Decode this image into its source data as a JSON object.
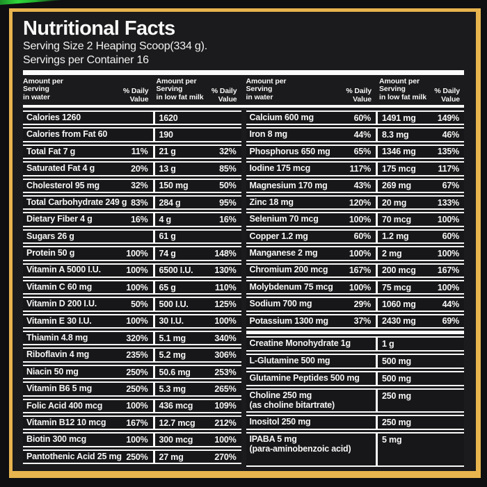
{
  "colors": {
    "frame_gold": "#e8b44e",
    "panel_bg": "#1b1b1d",
    "page_bg": "#0f0f12",
    "line_white": "#fbfbfb",
    "swoosh_green": "#2fd83b"
  },
  "header": {
    "title": "Nutritional Facts",
    "serving_size": "Serving Size 2 Heaping Scoop(334 g).",
    "servings_per_container": "Servings per Container 16"
  },
  "column_headers": {
    "water": "Amount per\nServing\nin water",
    "water_dv": "% Daily\nValue",
    "milk": "Amount per\nServing\nin low fat milk",
    "milk_dv": "% Daily\nValue"
  },
  "left_table": {
    "rows": [
      {
        "label": "Calories 1260",
        "water_dv": "",
        "milk": "1620",
        "milk_dv": ""
      },
      {
        "label": "Calories from Fat 60",
        "water_dv": "",
        "milk": "190",
        "milk_dv": ""
      },
      {
        "label": "Total Fat 7 g",
        "water_dv": "11%",
        "milk": "21 g",
        "milk_dv": "32%"
      },
      {
        "label": "Saturated Fat 4 g",
        "water_dv": "20%",
        "milk": "13 g",
        "milk_dv": "85%"
      },
      {
        "label": "Cholesterol 95 mg",
        "water_dv": "32%",
        "milk": "150 mg",
        "milk_dv": "50%"
      },
      {
        "label": "Total Carbohydrate 249 g",
        "water_dv": "83%",
        "milk": "284 g",
        "milk_dv": "95%"
      },
      {
        "label": "Dietary Fiber 4 g",
        "water_dv": "16%",
        "milk": "4 g",
        "milk_dv": "16%"
      },
      {
        "label": "Sugars 26 g",
        "water_dv": "",
        "milk": "61 g",
        "milk_dv": ""
      },
      {
        "label": "Protein 50 g",
        "water_dv": "100%",
        "milk": "74 g",
        "milk_dv": "148%"
      },
      {
        "label": "Vitamin A 5000 I.U.",
        "water_dv": "100%",
        "milk": "6500 I.U.",
        "milk_dv": "130%"
      },
      {
        "label": "Vitamin C 60 mg",
        "water_dv": "100%",
        "milk": "65 g",
        "milk_dv": "110%"
      },
      {
        "label": "Vitamin D 200 I.U.",
        "water_dv": "50%",
        "milk": "500 I.U.",
        "milk_dv": "125%"
      },
      {
        "label": "Vitamin E 30 I.U.",
        "water_dv": "100%",
        "milk": "30 I.U.",
        "milk_dv": "100%"
      },
      {
        "label": "Thiamin 4.8 mg",
        "water_dv": "320%",
        "milk": "5.1 mg",
        "milk_dv": "340%"
      },
      {
        "label": "Riboflavin 4 mg",
        "water_dv": "235%",
        "milk": "5.2 mg",
        "milk_dv": "306%"
      },
      {
        "label": "Niacin 50 mg",
        "water_dv": "250%",
        "milk": "50.6 mg",
        "milk_dv": "253%"
      },
      {
        "label": "Vitamin B6 5 mg",
        "water_dv": "250%",
        "milk": "5.3 mg",
        "milk_dv": "265%"
      },
      {
        "label": "Folic Acid 400 mcg",
        "water_dv": "100%",
        "milk": "436 mcg",
        "milk_dv": "109%"
      },
      {
        "label": "Vitamin B12 10 mcg",
        "water_dv": "167%",
        "milk": "12.7 mcg",
        "milk_dv": "212%"
      },
      {
        "label": "Biotin 300 mcg",
        "water_dv": "100%",
        "milk": "300 mcg",
        "milk_dv": "100%"
      },
      {
        "label": "Pantothenic Acid 25 mg",
        "water_dv": "250%",
        "milk": "27 mg",
        "milk_dv": "270%"
      }
    ]
  },
  "right_table": {
    "rows": [
      {
        "label": "Calcium 600 mg",
        "water_dv": "60%",
        "milk": "1491 mg",
        "milk_dv": "149%"
      },
      {
        "label": "Iron 8 mg",
        "water_dv": "44%",
        "milk": "8.3 mg",
        "milk_dv": "46%"
      },
      {
        "label": "Phosphorus 650 mg",
        "water_dv": "65%",
        "milk": "1346 mg",
        "milk_dv": "135%"
      },
      {
        "label": "Iodine 175 mcg",
        "water_dv": "117%",
        "milk": "175 mcg",
        "milk_dv": "117%"
      },
      {
        "label": "Magnesium 170 mg",
        "water_dv": "43%",
        "milk": "269 mg",
        "milk_dv": "67%"
      },
      {
        "label": "Zinc 18 mg",
        "water_dv": "120%",
        "milk": "20 mg",
        "milk_dv": "133%"
      },
      {
        "label": "Selenium 70 mcg",
        "water_dv": "100%",
        "milk": "70 mcg",
        "milk_dv": "100%"
      },
      {
        "label": "Copper 1.2 mg",
        "water_dv": "60%",
        "milk": "1.2 mg",
        "milk_dv": "60%"
      },
      {
        "label": "Manganese 2 mg",
        "water_dv": "100%",
        "milk": "2 mg",
        "milk_dv": "100%"
      },
      {
        "label": "Chromium 200 mcg",
        "water_dv": "167%",
        "milk": "200 mcg",
        "milk_dv": "167%"
      },
      {
        "label": "Molybdenum 75 mcg",
        "water_dv": "100%",
        "milk": "75 mcg",
        "milk_dv": "100%"
      },
      {
        "label": "Sodium 700 mg",
        "water_dv": "29%",
        "milk": "1060 mg",
        "milk_dv": "44%"
      },
      {
        "label": "Potassium 1300 mg",
        "water_dv": "37%",
        "milk": "2430 mg",
        "milk_dv": "69%"
      }
    ]
  },
  "supplements": {
    "rows": [
      {
        "label": "Creatine Monohydrate 1g",
        "milk": "1 g"
      },
      {
        "label": "L-Glutamine 500 mg",
        "milk": "500 mg"
      },
      {
        "label": "Glutamine Peptides 500 mg",
        "milk": "500 mg"
      },
      {
        "label": "Choline 250 mg\n(as choline bitartrate)",
        "milk": "250 mg"
      },
      {
        "label": "Inositol 250 mg",
        "milk": "250 mg"
      },
      {
        "label": "IPABA 5 mg\n(para-aminobenzoic acid)",
        "milk": "5 mg"
      }
    ]
  }
}
